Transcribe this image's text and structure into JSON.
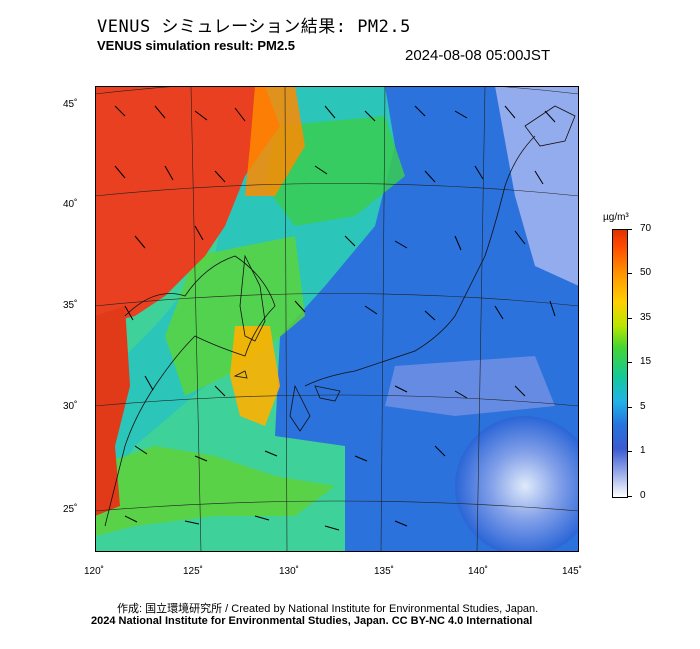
{
  "header": {
    "title_jp": "VENUS シミュレーション結果: PM2.5",
    "title_en": "VENUS simulation result: PM2.5",
    "timestamp": "2024-08-08 05:00JST"
  },
  "map": {
    "lat_labels": [
      "45˚",
      "40˚",
      "35˚",
      "30˚",
      "25˚"
    ],
    "lon_labels": [
      "120˚",
      "125˚",
      "130˚",
      "135˚",
      "140˚",
      "145˚"
    ]
  },
  "colorbar": {
    "unit": "µg/m³",
    "ticks": [
      "70",
      "50",
      "35",
      "15",
      "5",
      "1",
      "0"
    ],
    "colors": {
      "high": "#e03200",
      "mid_high": "#ff9900",
      "mid": "#44d632",
      "low": "#20b4e6",
      "very_low": "#3b5bd2",
      "zero": "#ffffff"
    }
  },
  "footer": {
    "credit": "作成: 国立環境研究所 / Created by National Institute for Environmental Studies, Japan.",
    "license": "2024 National Institute for Environmental Studies, Japan. CC BY-NC 4.0 International"
  }
}
